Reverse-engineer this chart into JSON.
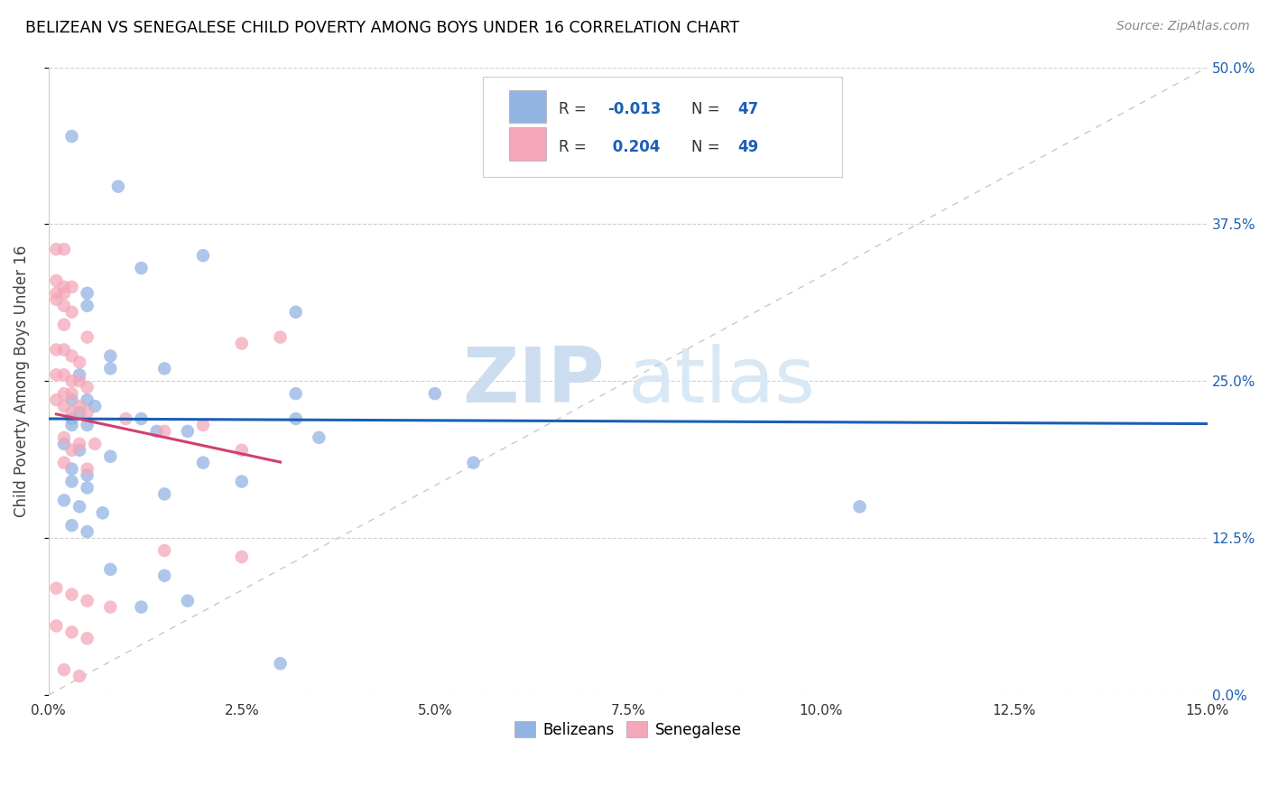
{
  "title": "BELIZEAN VS SENEGALESE CHILD POVERTY AMONG BOYS UNDER 16 CORRELATION CHART",
  "source": "Source: ZipAtlas.com",
  "xlim": [
    0.0,
    15.0
  ],
  "ylim": [
    0.0,
    50.0
  ],
  "x_tick_vals": [
    0,
    2.5,
    5.0,
    7.5,
    10.0,
    12.5,
    15.0
  ],
  "x_tick_labels": [
    "0.0%",
    "2.5%",
    "5.0%",
    "7.5%",
    "10.0%",
    "12.5%",
    "15.0%"
  ],
  "y_tick_vals": [
    0,
    12.5,
    25.0,
    37.5,
    50.0
  ],
  "y_tick_labels": [
    "0.0%",
    "12.5%",
    "25.0%",
    "37.5%",
    "50.0%"
  ],
  "watermark_zip": "ZIP",
  "watermark_atlas": "atlas",
  "belizean_color": "#92b4e3",
  "senegalese_color": "#f4a7b9",
  "belizean_line_color": "#1a5fb4",
  "senegalese_line_color": "#d04070",
  "diag_line_color": "#c8c8c8",
  "accent_blue": "#1a5fb4",
  "bel_line_x0": 0.0,
  "bel_line_y0": 22.0,
  "bel_line_x1": 15.0,
  "bel_line_y1": 21.6,
  "sen_line_x0": 0.05,
  "sen_line_y0": 19.5,
  "sen_line_x1": 3.0,
  "sen_line_y1": 27.5,
  "belizean_scatter": [
    [
      0.3,
      44.5
    ],
    [
      0.9,
      40.5
    ],
    [
      2.0,
      35.0
    ],
    [
      3.2,
      30.5
    ],
    [
      1.2,
      34.0
    ],
    [
      0.5,
      32.0
    ],
    [
      0.5,
      31.0
    ],
    [
      0.8,
      27.0
    ],
    [
      0.8,
      26.0
    ],
    [
      1.5,
      26.0
    ],
    [
      0.4,
      25.5
    ],
    [
      3.2,
      24.0
    ],
    [
      0.3,
      23.5
    ],
    [
      0.5,
      23.5
    ],
    [
      0.6,
      23.0
    ],
    [
      0.4,
      22.5
    ],
    [
      1.2,
      22.0
    ],
    [
      3.2,
      22.0
    ],
    [
      0.3,
      22.0
    ],
    [
      0.5,
      21.5
    ],
    [
      0.3,
      21.5
    ],
    [
      1.8,
      21.0
    ],
    [
      1.4,
      21.0
    ],
    [
      0.2,
      20.0
    ],
    [
      0.4,
      19.5
    ],
    [
      0.8,
      19.0
    ],
    [
      2.0,
      18.5
    ],
    [
      0.3,
      18.0
    ],
    [
      0.5,
      17.5
    ],
    [
      0.3,
      17.0
    ],
    [
      2.5,
      17.0
    ],
    [
      0.5,
      16.5
    ],
    [
      1.5,
      16.0
    ],
    [
      0.2,
      15.5
    ],
    [
      0.4,
      15.0
    ],
    [
      0.7,
      14.5
    ],
    [
      3.5,
      20.5
    ],
    [
      0.3,
      13.5
    ],
    [
      0.5,
      13.0
    ],
    [
      5.0,
      24.0
    ],
    [
      5.5,
      18.5
    ],
    [
      0.8,
      10.0
    ],
    [
      1.5,
      9.5
    ],
    [
      1.8,
      7.5
    ],
    [
      1.2,
      7.0
    ],
    [
      3.0,
      2.5
    ],
    [
      10.5,
      15.0
    ]
  ],
  "senegalese_scatter": [
    [
      0.1,
      35.5
    ],
    [
      0.2,
      35.5
    ],
    [
      0.1,
      33.0
    ],
    [
      0.2,
      32.5
    ],
    [
      0.3,
      32.5
    ],
    [
      0.1,
      32.0
    ],
    [
      0.2,
      32.0
    ],
    [
      0.1,
      31.5
    ],
    [
      0.2,
      31.0
    ],
    [
      0.3,
      30.5
    ],
    [
      0.2,
      29.5
    ],
    [
      0.5,
      28.5
    ],
    [
      2.5,
      28.0
    ],
    [
      0.1,
      27.5
    ],
    [
      0.2,
      27.5
    ],
    [
      0.3,
      27.0
    ],
    [
      0.4,
      26.5
    ],
    [
      3.0,
      28.5
    ],
    [
      0.1,
      25.5
    ],
    [
      0.2,
      25.5
    ],
    [
      0.3,
      25.0
    ],
    [
      0.4,
      25.0
    ],
    [
      0.5,
      24.5
    ],
    [
      0.2,
      24.0
    ],
    [
      0.3,
      24.0
    ],
    [
      0.1,
      23.5
    ],
    [
      0.2,
      23.0
    ],
    [
      0.4,
      23.0
    ],
    [
      0.3,
      22.5
    ],
    [
      0.5,
      22.5
    ],
    [
      1.0,
      22.0
    ],
    [
      1.5,
      21.0
    ],
    [
      2.0,
      21.5
    ],
    [
      0.2,
      20.5
    ],
    [
      0.4,
      20.0
    ],
    [
      0.6,
      20.0
    ],
    [
      0.3,
      19.5
    ],
    [
      2.5,
      19.5
    ],
    [
      0.2,
      18.5
    ],
    [
      0.5,
      18.0
    ],
    [
      1.5,
      11.5
    ],
    [
      2.5,
      11.0
    ],
    [
      0.1,
      8.5
    ],
    [
      0.3,
      8.0
    ],
    [
      0.5,
      7.5
    ],
    [
      0.8,
      7.0
    ],
    [
      0.1,
      5.5
    ],
    [
      0.3,
      5.0
    ],
    [
      0.5,
      4.5
    ],
    [
      0.2,
      2.0
    ],
    [
      0.4,
      1.5
    ]
  ]
}
